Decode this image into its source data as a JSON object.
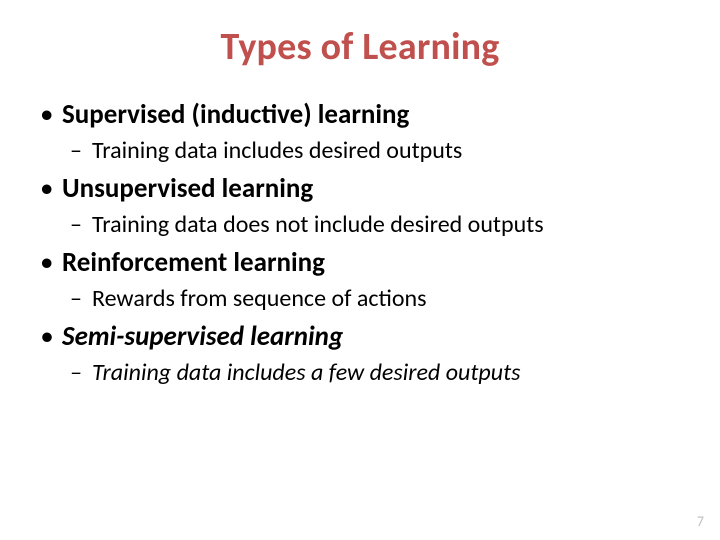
{
  "colors": {
    "title": "#c0504d",
    "body_text": "#000000",
    "page_number": "#bfbfbf",
    "background": "#ffffff"
  },
  "typography": {
    "title_fontsize": 38,
    "l1_fontsize": 27,
    "l2_fontsize": 24,
    "page_number_fontsize": 14,
    "font_family": "Calibri"
  },
  "title": "Types of Learning",
  "items": [
    {
      "label": "Supervised (inductive) learning",
      "italic": false,
      "sub": {
        "text": "Training data includes desired outputs",
        "italic": false
      }
    },
    {
      "label": "Unsupervised learning",
      "italic": false,
      "sub": {
        "text": "Training data does not include desired outputs",
        "italic": false
      }
    },
    {
      "label": "Reinforcement learning",
      "italic": false,
      "sub": {
        "text": "Rewards from sequence of actions",
        "italic": false
      }
    },
    {
      "label": "Semi-supervised learning",
      "italic": true,
      "sub": {
        "text": "Training data includes a few desired outputs",
        "italic": true
      }
    }
  ],
  "page_number": "7"
}
